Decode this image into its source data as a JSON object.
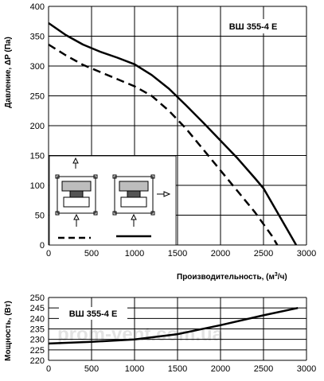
{
  "chart_data": [
    {
      "type": "line",
      "model_label": "ВШ 355-4 Е",
      "xlabel_text": "Производительность, (м",
      "xlabel_sup": "3",
      "xlabel_tail": "/ч)",
      "ylabel": "Давление, ΔP (Па)",
      "xlim": [
        0,
        3000
      ],
      "ylim": [
        0,
        400
      ],
      "x_ticks": [
        0,
        500,
        1000,
        1500,
        2000,
        2500,
        3000
      ],
      "y_ticks": [
        0,
        50,
        100,
        150,
        200,
        250,
        300,
        350,
        400
      ],
      "grid": true,
      "series": [
        {
          "style": "solid",
          "x": [
            0,
            200,
            400,
            600,
            800,
            1000,
            1200,
            1400,
            1600,
            1800,
            2000,
            2200,
            2400,
            2500,
            2600,
            2700,
            2800,
            2880
          ],
          "y": [
            372,
            352,
            336,
            324,
            314,
            303,
            285,
            262,
            234,
            205,
            175,
            145,
            112,
            95,
            70,
            45,
            20,
            0
          ]
        },
        {
          "style": "dashed",
          "x": [
            0,
            200,
            400,
            600,
            800,
            1000,
            1200,
            1400,
            1600,
            1800,
            2000,
            2200,
            2400,
            2500,
            2600,
            2660
          ],
          "y": [
            336,
            318,
            302,
            290,
            278,
            266,
            250,
            225,
            195,
            160,
            125,
            90,
            55,
            35,
            15,
            0
          ]
        }
      ],
      "inset_legend": {
        "solid_label_icon": "fan-outlet-side-icon",
        "dashed_label_icon": "fan-outlet-top-icon"
      }
    },
    {
      "type": "line",
      "model_label": "ВШ 355-4 Е",
      "ylabel": "Мощность, (Вт)",
      "xlim": [
        0,
        3000
      ],
      "ylim": [
        220,
        250
      ],
      "x_ticks": [
        0,
        500,
        1000,
        1500,
        2000,
        2500,
        3000
      ],
      "y_ticks": [
        220,
        225,
        230,
        235,
        240,
        245,
        250
      ],
      "grid": true,
      "series": [
        {
          "style": "solid",
          "x": [
            0,
            500,
            1000,
            1500,
            2000,
            2500,
            2900
          ],
          "y": [
            228,
            228.8,
            230,
            232.5,
            236.8,
            241.5,
            245
          ]
        }
      ]
    }
  ],
  "watermark": "prom-vent.com.ua"
}
